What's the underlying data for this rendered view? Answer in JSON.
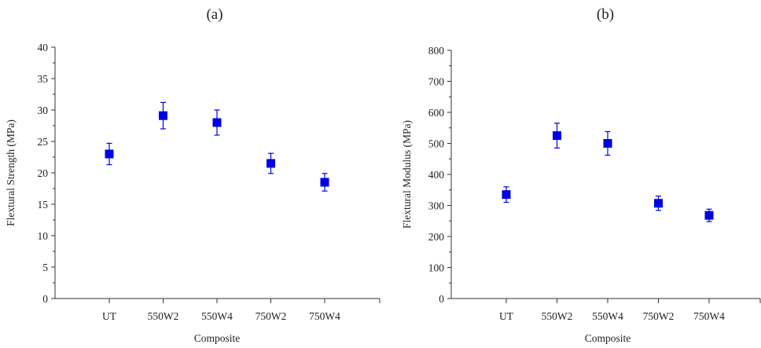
{
  "chart_data": [
    {
      "type": "scatter",
      "panel_label": "(a)",
      "title": "",
      "xlabel": "Composite",
      "ylabel": "Flextural Strength (MPa)",
      "categories": [
        "UT",
        "550W2",
        "550W4",
        "750W2",
        "750W4"
      ],
      "series": [
        {
          "values": [
            23.0,
            29.1,
            28.0,
            21.5,
            18.5
          ],
          "error": [
            1.7,
            2.1,
            2.0,
            1.6,
            1.4
          ]
        }
      ],
      "ylim": [
        0,
        40
      ],
      "yticks": [
        0,
        5,
        10,
        15,
        20,
        25,
        30,
        35,
        40
      ],
      "grid": false,
      "marker_color": "#0000e6"
    },
    {
      "type": "scatter",
      "panel_label": "(b)",
      "title": "",
      "xlabel": "Composite",
      "ylabel": "Flextural Modulus (MPa)",
      "categories": [
        "UT",
        "550W2",
        "550W4",
        "750W2",
        "750W4"
      ],
      "series": [
        {
          "values": [
            335,
            525,
            500,
            307,
            268
          ],
          "error": [
            25,
            40,
            38,
            23,
            20
          ]
        }
      ],
      "ylim": [
        0,
        800
      ],
      "yticks": [
        0,
        100,
        200,
        300,
        400,
        500,
        600,
        700,
        800
      ],
      "grid": false,
      "marker_color": "#0000e6"
    }
  ]
}
